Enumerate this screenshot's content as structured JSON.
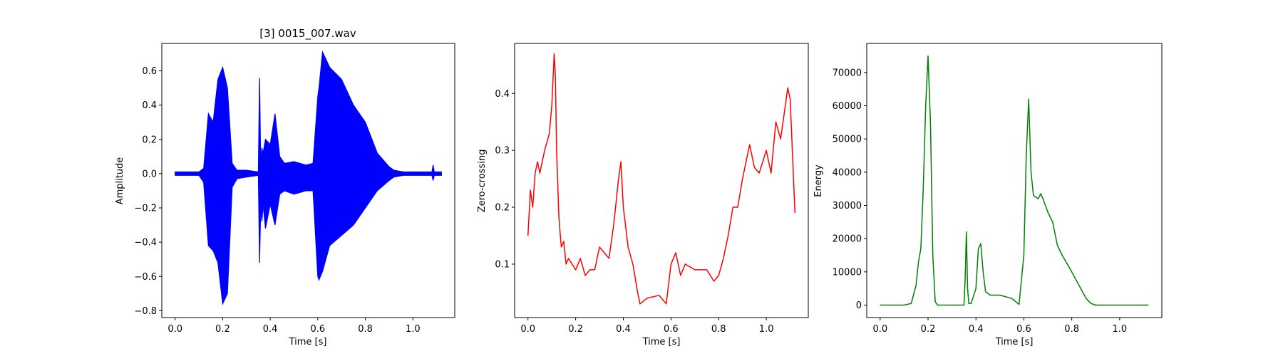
{
  "chart_data": [
    {
      "type": "line",
      "title": "[3] 0015_007.wav",
      "xlabel": "Time [s]",
      "ylabel": "Amplitude",
      "xlim": [
        -0.056,
        1.176
      ],
      "ylim": [
        -0.84,
        0.76
      ],
      "xticks": [
        "0.0",
        "0.2",
        "0.4",
        "0.6",
        "0.8",
        "1.0"
      ],
      "xtick_values": [
        0.0,
        0.2,
        0.4,
        0.6,
        0.8,
        1.0
      ],
      "yticks": [
        "−0.8",
        "−0.6",
        "−0.4",
        "−0.2",
        "0.0",
        "0.2",
        "0.4",
        "0.6"
      ],
      "ytick_values": [
        -0.8,
        -0.6,
        -0.4,
        -0.2,
        0.0,
        0.2,
        0.4,
        0.6
      ],
      "color": "#0000ff",
      "series": [
        {
          "style": "waveform-envelope",
          "x": [
            0.0,
            0.1,
            0.12,
            0.14,
            0.16,
            0.18,
            0.2,
            0.22,
            0.24,
            0.26,
            0.3,
            0.35,
            0.355,
            0.36,
            0.365,
            0.37,
            0.38,
            0.4,
            0.42,
            0.44,
            0.46,
            0.5,
            0.55,
            0.58,
            0.6,
            0.605,
            0.62,
            0.65,
            0.7,
            0.75,
            0.8,
            0.85,
            0.9,
            0.92,
            0.96,
            1.0,
            1.08,
            1.085,
            1.09,
            1.12
          ],
          "upper": [
            0.01,
            0.01,
            0.03,
            0.35,
            0.3,
            0.55,
            0.62,
            0.5,
            0.06,
            0.02,
            0.02,
            0.01,
            0.56,
            0.06,
            0.15,
            0.12,
            0.2,
            0.17,
            0.35,
            0.1,
            0.06,
            0.07,
            0.05,
            0.06,
            0.45,
            0.5,
            0.71,
            0.62,
            0.55,
            0.4,
            0.3,
            0.12,
            0.04,
            0.02,
            0.01,
            0.01,
            0.01,
            0.05,
            0.01,
            0.01
          ],
          "lower": [
            -0.01,
            -0.01,
            -0.05,
            -0.42,
            -0.45,
            -0.52,
            -0.76,
            -0.7,
            -0.08,
            -0.03,
            -0.02,
            -0.01,
            -0.52,
            -0.2,
            -0.28,
            -0.18,
            -0.32,
            -0.18,
            -0.3,
            -0.12,
            -0.1,
            -0.12,
            -0.1,
            -0.1,
            -0.6,
            -0.62,
            -0.57,
            -0.42,
            -0.36,
            -0.3,
            -0.2,
            -0.1,
            -0.04,
            -0.02,
            -0.01,
            -0.01,
            -0.01,
            -0.04,
            -0.01,
            -0.01
          ]
        }
      ]
    },
    {
      "type": "line",
      "title": "",
      "xlabel": "Time [s]",
      "ylabel": "Zero-crossing",
      "xlim": [
        -0.056,
        1.176
      ],
      "ylim": [
        0.006,
        0.488
      ],
      "xticks": [
        "0.0",
        "0.2",
        "0.4",
        "0.6",
        "0.8",
        "1.0"
      ],
      "xtick_values": [
        0.0,
        0.2,
        0.4,
        0.6,
        0.8,
        1.0
      ],
      "yticks": [
        "0.1",
        "0.2",
        "0.3",
        "0.4"
      ],
      "ytick_values": [
        0.1,
        0.2,
        0.3,
        0.4
      ],
      "color": "#ff0000",
      "series": [
        {
          "x": [
            0.0,
            0.01,
            0.02,
            0.03,
            0.04,
            0.05,
            0.07,
            0.09,
            0.1,
            0.11,
            0.115,
            0.12,
            0.13,
            0.14,
            0.15,
            0.16,
            0.17,
            0.2,
            0.22,
            0.24,
            0.26,
            0.28,
            0.3,
            0.32,
            0.34,
            0.36,
            0.38,
            0.39,
            0.4,
            0.42,
            0.44,
            0.46,
            0.47,
            0.5,
            0.55,
            0.58,
            0.6,
            0.62,
            0.64,
            0.66,
            0.7,
            0.75,
            0.78,
            0.8,
            0.82,
            0.84,
            0.86,
            0.88,
            0.9,
            0.93,
            0.95,
            0.97,
            1.0,
            1.02,
            1.04,
            1.06,
            1.08,
            1.09,
            1.1,
            1.12
          ],
          "y": [
            0.15,
            0.23,
            0.2,
            0.26,
            0.28,
            0.26,
            0.3,
            0.33,
            0.38,
            0.47,
            0.43,
            0.3,
            0.18,
            0.13,
            0.14,
            0.1,
            0.11,
            0.09,
            0.11,
            0.08,
            0.09,
            0.09,
            0.13,
            0.12,
            0.11,
            0.17,
            0.25,
            0.28,
            0.2,
            0.13,
            0.1,
            0.05,
            0.03,
            0.04,
            0.045,
            0.03,
            0.1,
            0.12,
            0.08,
            0.1,
            0.09,
            0.09,
            0.07,
            0.08,
            0.11,
            0.15,
            0.2,
            0.2,
            0.25,
            0.31,
            0.27,
            0.26,
            0.3,
            0.26,
            0.35,
            0.32,
            0.38,
            0.41,
            0.39,
            0.19
          ]
        }
      ]
    },
    {
      "type": "line",
      "title": "",
      "xlabel": "Time [s]",
      "ylabel": "Energy",
      "xlim": [
        -0.056,
        1.176
      ],
      "ylim": [
        -3750,
        78750
      ],
      "xticks": [
        "0.0",
        "0.2",
        "0.4",
        "0.6",
        "0.8",
        "1.0"
      ],
      "xtick_values": [
        0.0,
        0.2,
        0.4,
        0.6,
        0.8,
        1.0
      ],
      "yticks": [
        "0",
        "10000",
        "20000",
        "30000",
        "40000",
        "50000",
        "60000",
        "70000"
      ],
      "ytick_values": [
        0,
        10000,
        20000,
        30000,
        40000,
        50000,
        60000,
        70000
      ],
      "color": "#008000",
      "series": [
        {
          "x": [
            0.0,
            0.1,
            0.13,
            0.15,
            0.16,
            0.17,
            0.18,
            0.19,
            0.2,
            0.21,
            0.22,
            0.23,
            0.24,
            0.26,
            0.35,
            0.355,
            0.36,
            0.365,
            0.37,
            0.38,
            0.4,
            0.41,
            0.42,
            0.43,
            0.44,
            0.46,
            0.5,
            0.55,
            0.58,
            0.6,
            0.61,
            0.62,
            0.63,
            0.64,
            0.66,
            0.67,
            0.68,
            0.7,
            0.72,
            0.74,
            0.76,
            0.8,
            0.83,
            0.86,
            0.88,
            0.9,
            0.95,
            1.0,
            1.12
          ],
          "y": [
            0,
            0,
            500,
            6000,
            13000,
            17000,
            35000,
            60000,
            75000,
            55000,
            15000,
            1000,
            0,
            0,
            0,
            8000,
            22000,
            5000,
            500,
            500,
            5000,
            17000,
            18500,
            10000,
            4000,
            3000,
            3000,
            2000,
            200,
            15000,
            45000,
            62000,
            40000,
            33000,
            32000,
            33500,
            32000,
            28000,
            25000,
            18000,
            15000,
            10000,
            6000,
            2000,
            500,
            0,
            0,
            0,
            0
          ]
        }
      ]
    }
  ]
}
